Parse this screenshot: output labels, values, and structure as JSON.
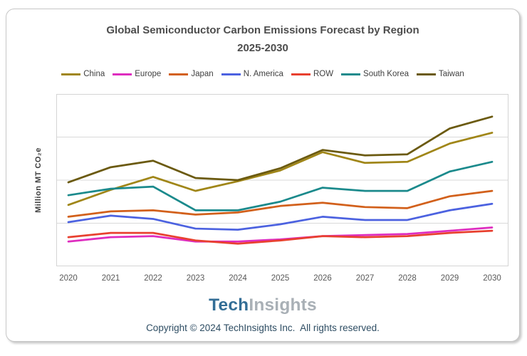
{
  "title": {
    "line1": "Global Semiconductor Carbon Emissions Forecast by Region",
    "line2": "2025-2030"
  },
  "y_axis": {
    "label": "Million MT CO₂e"
  },
  "footer": {
    "logo_tech": "Tech",
    "logo_insights": "Insights",
    "copyright": "Copyright © 2024 TechInsights Inc.  All rights reserved."
  },
  "colors": {
    "frame_border": "#C6C6C6",
    "plot_border": "#D4D4D4",
    "gridline": "#D9D9D9",
    "title_text": "#4D4D4D",
    "axis_text": "#595959",
    "legend_text": "#404040",
    "logo_tech": "#336E96",
    "logo_insights": "#A9B0B6",
    "copyright_text": "#2E4D63"
  },
  "chart_data": {
    "type": "line",
    "title": "Global Semiconductor Carbon Emissions Forecast by Region 2025-2030",
    "xlabel": "",
    "ylabel": "Million MT CO₂e",
    "x": [
      2020,
      2021,
      2022,
      2023,
      2024,
      2025,
      2026,
      2027,
      2028,
      2029,
      2030
    ],
    "ylim": [
      0,
      80
    ],
    "gridline_values": [
      20,
      40,
      60
    ],
    "y_tick_labels_visible": false,
    "grid": "horizontal only",
    "legend_position": "top",
    "series": [
      {
        "name": "China",
        "color": "#A08618",
        "values": [
          28.5,
          35.5,
          41.5,
          35,
          39.5,
          44.5,
          53,
          48,
          48.5,
          57,
          62
        ]
      },
      {
        "name": "Europe",
        "color": "#DE2DBF",
        "values": [
          11.5,
          13.5,
          14,
          11.5,
          11.5,
          12.5,
          14,
          14.5,
          15,
          16.5,
          18
        ]
      },
      {
        "name": "Japan",
        "color": "#D2601B",
        "values": [
          23,
          25.5,
          26,
          24,
          25,
          28,
          29.5,
          27.5,
          27,
          32.5,
          35
        ]
      },
      {
        "name": "N. America",
        "color": "#4C62E0",
        "values": [
          20.5,
          23.5,
          22,
          17.5,
          17,
          19.5,
          23,
          21.5,
          21.5,
          26,
          29
        ]
      },
      {
        "name": "ROW",
        "color": "#E8402F",
        "values": [
          13.5,
          15.5,
          15.5,
          12,
          10.5,
          12,
          14,
          13.5,
          14,
          15.5,
          16.5
        ]
      },
      {
        "name": "South Korea",
        "color": "#1B8A8C",
        "values": [
          33,
          36,
          37,
          26,
          26,
          30,
          36.5,
          35,
          35,
          44,
          48.5
        ]
      },
      {
        "name": "Taiwan",
        "color": "#6B5A10",
        "values": [
          39,
          46,
          49,
          41,
          40,
          45.5,
          54,
          51.5,
          52,
          64,
          69.5
        ]
      }
    ]
  }
}
